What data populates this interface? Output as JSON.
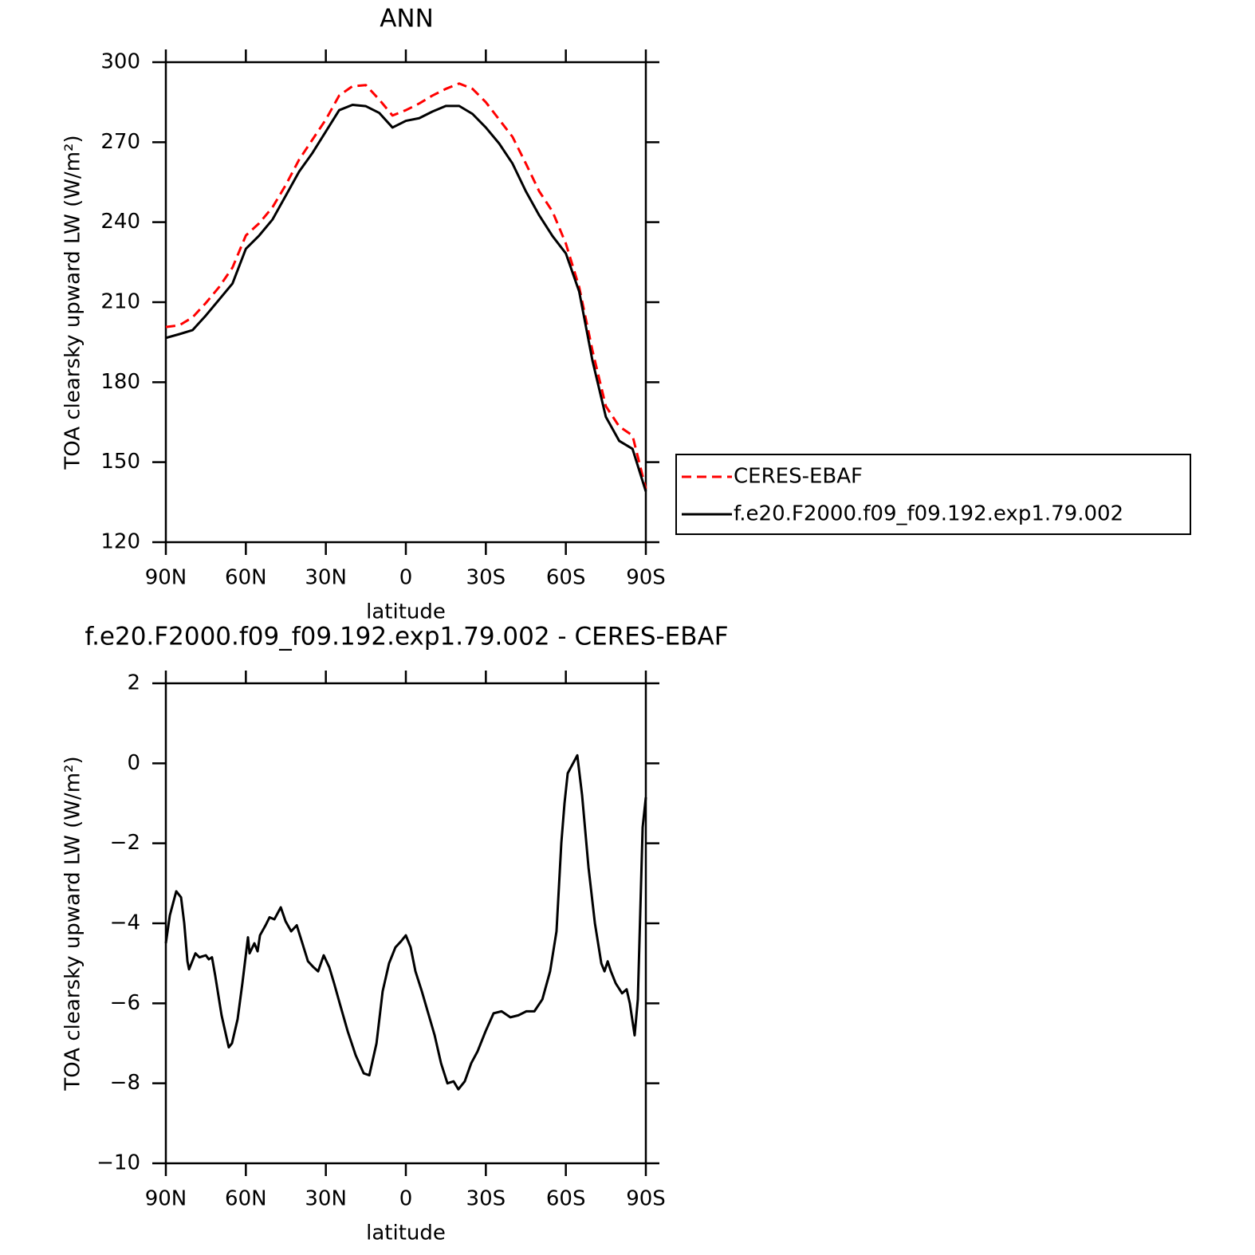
{
  "chart_data": [
    {
      "type": "line",
      "title": "ANN",
      "xlabel": "latitude",
      "ylabel": "TOA clearsky upward LW (W/m²)",
      "xlim": [
        90,
        -90
      ],
      "xticks": [
        {
          "value": 90,
          "label": "90N"
        },
        {
          "value": 60,
          "label": "60N"
        },
        {
          "value": 30,
          "label": "30N"
        },
        0,
        {
          "value": -30,
          "label": "30S"
        },
        {
          "value": -60,
          "label": "60S"
        },
        {
          "value": -90,
          "label": "90S"
        }
      ],
      "ylim": [
        120,
        300
      ],
      "yticks": [
        120,
        150,
        180,
        210,
        240,
        270,
        300
      ],
      "legend": "right",
      "x": [
        90,
        85,
        80,
        75,
        70,
        65,
        60,
        55,
        50,
        45,
        40,
        35,
        30,
        25,
        20,
        15,
        10,
        5,
        0,
        -5,
        -10,
        -15,
        -20,
        -25,
        -30,
        -35,
        -40,
        -45,
        -50,
        -55,
        -60,
        -65,
        -70,
        -75,
        -80,
        -85,
        -90
      ],
      "series": [
        {
          "name": "CERES-EBAF",
          "color": "#ff0000",
          "dashed": true,
          "values": [
            200.7,
            201.3,
            204.3,
            209.7,
            215.7,
            223,
            235,
            239.6,
            245.6,
            254,
            263.5,
            271,
            278.5,
            287.5,
            291,
            291.4,
            286,
            280,
            282,
            284.5,
            287.5,
            290,
            292,
            290,
            285,
            278.5,
            272,
            262,
            251.6,
            244,
            232,
            215.7,
            191.8,
            171,
            163.4,
            160,
            140
          ]
        },
        {
          "name": "f.e20.F2000.f09_f09.192.exp1.79.002",
          "color": "#000000",
          "dashed": false,
          "values": [
            196.6,
            198,
            199.5,
            205,
            211,
            217,
            230,
            235,
            241,
            250,
            259,
            266,
            274,
            282,
            284,
            283.5,
            281,
            275.5,
            278,
            279,
            281.5,
            283.6,
            283.6,
            280.6,
            275.5,
            269.5,
            262,
            251.6,
            242.6,
            234.8,
            228.3,
            214,
            188,
            167,
            158,
            155,
            139
          ]
        }
      ]
    },
    {
      "type": "line",
      "title": "f.e20.F2000.f09_f09.192.exp1.79.002 - CERES-EBAF",
      "xlabel": "latitude",
      "ylabel": "TOA clearsky upward LW (W/m²)",
      "xlim": [
        90,
        -90
      ],
      "xticks": [
        {
          "value": 90,
          "label": "90N"
        },
        {
          "value": 60,
          "label": "60N"
        },
        {
          "value": 30,
          "label": "30N"
        },
        0,
        {
          "value": -30,
          "label": "30S"
        },
        {
          "value": -60,
          "label": "60S"
        },
        {
          "value": -90,
          "label": "90S"
        }
      ],
      "ylim": [
        -10,
        2
      ],
      "yticks": [
        {
          "value": -10,
          "label": "−10"
        },
        {
          "value": -8,
          "label": "−8"
        },
        {
          "value": -6,
          "label": "−6"
        },
        {
          "value": -4,
          "label": "−4"
        },
        {
          "value": -2,
          "label": "−2"
        },
        0,
        2
      ],
      "color": "#000000",
      "x": [
        90,
        88.5,
        86.1,
        84.3,
        83.1,
        81.9,
        81.3,
        78.9,
        77.4,
        75,
        73.9,
        72.7,
        71.5,
        69.1,
        66.4,
        65.2,
        63.1,
        61.3,
        59.2,
        58.6,
        56.8,
        55.6,
        54.7,
        52.6,
        51.1,
        49.3,
        46.9,
        45.1,
        43,
        40.9,
        38.8,
        36.7,
        34.6,
        32.9,
        30.8,
        28.7,
        26.9,
        24.8,
        21.8,
        18.8,
        15.8,
        13.7,
        11,
        8.7,
        6.3,
        3.9,
        1.8,
        0,
        -1.8,
        -3.6,
        -6,
        -8.4,
        -10.8,
        -13.2,
        -15.6,
        -17.9,
        -19.7,
        -22.1,
        -24.5,
        -26.9,
        -29.9,
        -32.9,
        -35.9,
        -39.2,
        -42.2,
        -45.2,
        -48.2,
        -51.2,
        -54.1,
        -56.5,
        -58.3,
        -59.5,
        -60.7,
        -61.9,
        -64.3,
        -66.1,
        -68.5,
        -70.9,
        -73.3,
        -74.5,
        -75.7,
        -76.9,
        -78.7,
        -81.1,
        -82.8,
        -84,
        -85.8,
        -87,
        -88.8,
        -90
      ],
      "values": [
        -4.5,
        -3.8,
        -3.2,
        -3.35,
        -4,
        -4.95,
        -5.15,
        -4.75,
        -4.85,
        -4.8,
        -4.9,
        -4.85,
        -5.3,
        -6.3,
        -7.1,
        -7,
        -6.4,
        -5.5,
        -4.35,
        -4.75,
        -4.5,
        -4.7,
        -4.3,
        -4.05,
        -3.85,
        -3.9,
        -3.6,
        -3.95,
        -4.2,
        -4.05,
        -4.5,
        -4.95,
        -5.1,
        -5.2,
        -4.8,
        -5.1,
        -5.5,
        -6,
        -6.7,
        -7.3,
        -7.75,
        -7.8,
        -7,
        -5.7,
        -5,
        -4.6,
        -4.45,
        -4.3,
        -4.6,
        -5.2,
        -5.7,
        -6.25,
        -6.8,
        -7.5,
        -8,
        -7.95,
        -8.15,
        -7.95,
        -7.5,
        -7.2,
        -6.7,
        -6.25,
        -6.2,
        -6.35,
        -6.3,
        -6.2,
        -6.2,
        -5.9,
        -5.2,
        -4.2,
        -2,
        -1,
        -0.25,
        -0.1,
        0.2,
        -0.8,
        -2.6,
        -4,
        -5,
        -5.2,
        -4.95,
        -5.2,
        -5.5,
        -5.75,
        -5.65,
        -6,
        -6.8,
        -5.9,
        -1.6,
        -0.85
      ]
    }
  ]
}
